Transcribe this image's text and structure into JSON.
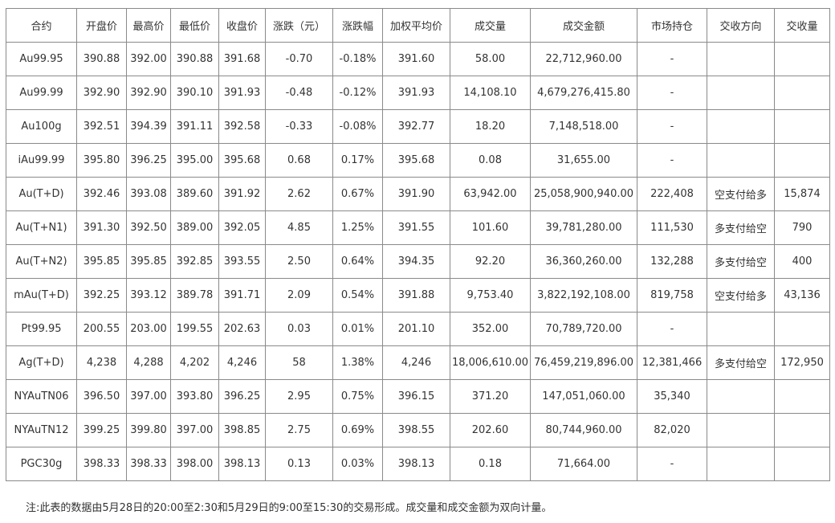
{
  "table": {
    "header": [
      "合约",
      "开盘价",
      "最高价",
      "最低价",
      "收盘价",
      "涨跌（元）",
      "涨跌幅",
      "加权平均价",
      "成交量",
      "成交金额",
      "市场持仓",
      "交收方向",
      "交收量"
    ],
    "rows": [
      [
        "Au99.95",
        "390.88",
        "392.00",
        "390.88",
        "391.68",
        "-0.70",
        "-0.18%",
        "391.60",
        "58.00",
        "22,712,960.00",
        "-",
        null,
        null
      ],
      [
        "Au99.99",
        "392.90",
        "392.90",
        "390.10",
        "391.93",
        "-0.48",
        "-0.12%",
        "391.93",
        "14,108.10",
        "4,679,276,415.80",
        "-",
        null,
        null
      ],
      [
        "Au100g",
        "392.51",
        "394.39",
        "391.11",
        "392.58",
        "-0.33",
        "-0.08%",
        "392.77",
        "18.20",
        "7,148,518.00",
        "-",
        null,
        null
      ],
      [
        "iAu99.99",
        "395.80",
        "396.25",
        "395.00",
        "395.68",
        "0.68",
        "0.17%",
        "395.68",
        "0.08",
        "31,655.00",
        "-",
        null,
        null
      ],
      [
        "Au(T+D)",
        "392.46",
        "393.08",
        "389.60",
        "391.92",
        "2.62",
        "0.67%",
        "391.90",
        "63,942.00",
        "25,058,900,940.00",
        "222,408",
        "空支付给多",
        "15,874"
      ],
      [
        "Au(T+N1)",
        "391.30",
        "392.50",
        "389.00",
        "392.05",
        "4.85",
        "1.25%",
        "391.55",
        "101.60",
        "39,781,280.00",
        "111,530",
        "多支付给空",
        "790"
      ],
      [
        "Au(T+N2)",
        "395.85",
        "395.85",
        "392.85",
        "393.55",
        "2.50",
        "0.64%",
        "394.35",
        "92.20",
        "36,360,260.00",
        "132,288",
        "多支付给空",
        "400"
      ],
      [
        "mAu(T+D)",
        "392.25",
        "393.12",
        "389.78",
        "391.71",
        "2.09",
        "0.54%",
        "391.88",
        "9,753.40",
        "3,822,192,108.00",
        "819,758",
        "空支付给多",
        "43,136"
      ],
      [
        "Pt99.95",
        "200.55",
        "203.00",
        "199.55",
        "202.63",
        "0.03",
        "0.01%",
        "201.10",
        "352.00",
        "70,789,720.00",
        "-",
        null,
        null
      ],
      [
        "Ag(T+D)",
        "4,238",
        "4,288",
        "4,202",
        "4,246",
        "58",
        "1.38%",
        "4,246",
        "18,006,610.00",
        "76,459,219,896.00",
        "12,381,466",
        "多支付给空",
        "172,950"
      ],
      [
        "NYAuTN06",
        "396.50",
        "397.00",
        "393.80",
        "396.25",
        "2.95",
        "0.75%",
        "396.15",
        "371.20",
        "147,051,060.00",
        "35,340",
        null,
        null
      ],
      [
        "NYAuTN12",
        "399.25",
        "399.80",
        "397.00",
        "398.85",
        "2.75",
        "0.69%",
        "398.55",
        "202.60",
        "80,744,960.00",
        "82,020",
        null,
        null
      ],
      [
        "PGC30g",
        "398.33",
        "398.33",
        "398.00",
        "398.13",
        "0.13",
        "0.03%",
        "398.13",
        "0.18",
        "71,664.00",
        "-",
        null,
        null
      ]
    ]
  },
  "footnote": "注:此表的数据由5月28日的20:00至2:30和5月29日的9:00至15:30的交易形成。成交量和成交金额为双向计量。"
}
